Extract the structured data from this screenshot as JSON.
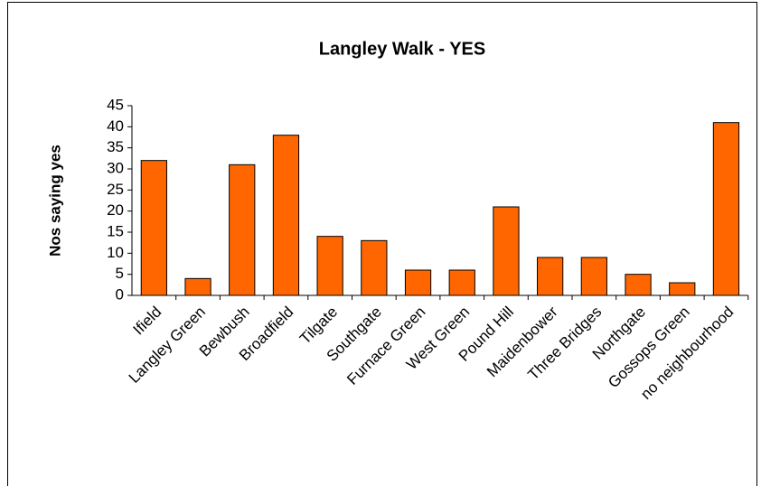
{
  "chart_data": {
    "type": "bar",
    "title": "Langley Walk - YES",
    "y_label": "Nos saying yes",
    "categories": [
      "Ifield",
      "Langley Green",
      "Bewbush",
      "Broadfield",
      "Tilgate",
      "Southgate",
      "Furnace Green",
      "West Green",
      "Pound Hill",
      "Maidenbower",
      "Three Bridges",
      "Northgate",
      "Gossops Green",
      "no neighbourhood"
    ],
    "values": [
      32,
      4,
      31,
      38,
      14,
      13,
      6,
      6,
      21,
      9,
      9,
      5,
      3,
      41
    ],
    "color": "#ff6600",
    "ylim": [
      0,
      45
    ],
    "yticks": [
      0,
      5,
      10,
      15,
      20,
      25,
      30,
      35,
      40,
      45
    ],
    "grid": false
  }
}
